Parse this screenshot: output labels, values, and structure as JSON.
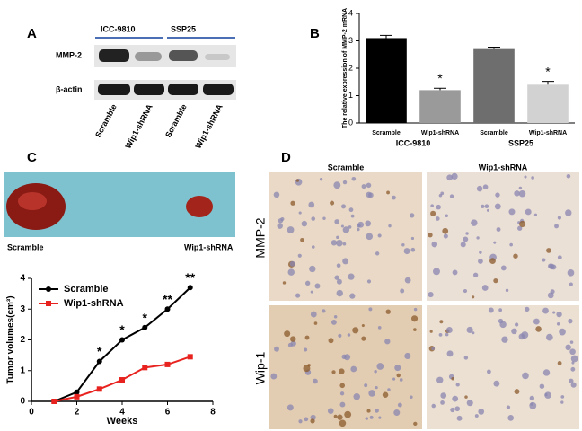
{
  "panel_labels": [
    "A",
    "B",
    "C",
    "D"
  ],
  "blot": {
    "groups": [
      "ICC-9810",
      "SSP25"
    ],
    "rows": [
      "MMP-2",
      "β-actin"
    ],
    "lanes": [
      "Scramble",
      "Wip1-shRNA",
      "Scramble",
      "Wip1-shRNA"
    ]
  },
  "tumor_photo": {
    "labels": [
      "Scramble",
      "Wip1-shRNA"
    ]
  },
  "ihc": {
    "columns": [
      "Scramble",
      "Wip1-shRNA"
    ],
    "rows": [
      "MMP-2",
      "Wip-1"
    ]
  },
  "chart_data": [
    {
      "type": "bar",
      "y_label": "The relative expression of MMP-2 mRNA",
      "categories": [
        "Scramble",
        "Wip1-shRNA",
        "Scramble",
        "Wip1-shRNA"
      ],
      "group_labels": [
        "ICC-9810",
        "SSP25"
      ],
      "values": [
        3.1,
        1.2,
        2.7,
        1.4
      ],
      "errors": [
        0.1,
        0.07,
        0.07,
        0.12
      ],
      "annotations": [
        null,
        "*",
        null,
        "*"
      ],
      "colors": [
        "#000000",
        "#9a9a9a",
        "#6e6e6e",
        "#d2d2d2"
      ],
      "ylim": [
        0,
        4
      ],
      "yticks": [
        0,
        1,
        2,
        3,
        4
      ]
    },
    {
      "type": "line",
      "x_label": "Weeks",
      "y_label": "Tumor volumes(cm³)",
      "x": [
        1,
        2,
        3,
        4,
        5,
        6,
        7
      ],
      "series": [
        {
          "name": "Scramble",
          "color": "#000000",
          "marker": "circle",
          "values": [
            0,
            0.3,
            1.3,
            2.0,
            2.4,
            3.0,
            3.7
          ],
          "annotations": [
            null,
            null,
            "*",
            "*",
            "*",
            "**",
            "**"
          ]
        },
        {
          "name": "Wip1-shRNA",
          "color": "#e8231f",
          "marker": "square",
          "values": [
            0,
            0.15,
            0.4,
            0.7,
            1.1,
            1.2,
            1.45
          ]
        }
      ],
      "xlim": [
        0,
        8
      ],
      "xticks": [
        0,
        2,
        4,
        6,
        8
      ],
      "ylim": [
        0,
        4
      ],
      "yticks": [
        0,
        1,
        2,
        3,
        4
      ],
      "legend": "upper-left"
    }
  ]
}
